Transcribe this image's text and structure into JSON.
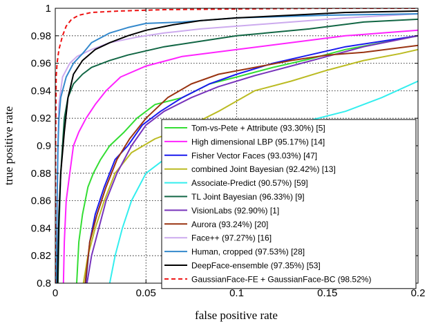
{
  "chart_data": {
    "type": "line",
    "title": "",
    "xlabel": "false positive rate",
    "ylabel": "true positive rate",
    "xlim": [
      0,
      0.2
    ],
    "ylim": [
      0.8,
      1.0
    ],
    "x_ticks": [
      "0",
      "0.05",
      "0.1",
      "0.15",
      "0.2"
    ],
    "y_ticks": [
      "0.8",
      "0.82",
      "0.84",
      "0.86",
      "0.88",
      "0.9",
      "0.92",
      "0.94",
      "0.96",
      "0.98",
      "1"
    ],
    "grid": true,
    "legend_position": "bottom-right",
    "series": [
      {
        "name": "Tom-vs-Pete + Attribute (93.30%) [5]",
        "color": "#33dd33",
        "dash": false,
        "points": [
          [
            0.0118,
            0.8
          ],
          [
            0.013,
            0.83
          ],
          [
            0.015,
            0.85
          ],
          [
            0.018,
            0.87
          ],
          [
            0.021,
            0.88
          ],
          [
            0.025,
            0.89
          ],
          [
            0.03,
            0.9
          ],
          [
            0.038,
            0.91
          ],
          [
            0.045,
            0.92
          ],
          [
            0.055,
            0.93
          ],
          [
            0.07,
            0.935
          ],
          [
            0.085,
            0.945
          ],
          [
            0.1,
            0.95
          ],
          [
            0.12,
            0.957
          ],
          [
            0.14,
            0.963
          ],
          [
            0.16,
            0.97
          ],
          [
            0.18,
            0.975
          ],
          [
            0.2,
            0.98
          ]
        ]
      },
      {
        "name": "High dimensional LBP (95.17%) [14]",
        "color": "#ff22ff",
        "dash": false,
        "points": [
          [
            0.0045,
            0.8
          ],
          [
            0.005,
            0.83
          ],
          [
            0.006,
            0.86
          ],
          [
            0.008,
            0.88
          ],
          [
            0.01,
            0.9
          ],
          [
            0.013,
            0.91
          ],
          [
            0.017,
            0.92
          ],
          [
            0.022,
            0.93
          ],
          [
            0.028,
            0.94
          ],
          [
            0.036,
            0.95
          ],
          [
            0.05,
            0.958
          ],
          [
            0.07,
            0.965
          ],
          [
            0.1,
            0.97
          ],
          [
            0.13,
            0.975
          ],
          [
            0.16,
            0.98
          ],
          [
            0.2,
            0.984
          ]
        ]
      },
      {
        "name": "Fisher Vector Faces (93.03%) [47]",
        "color": "#1a1aee",
        "dash": false,
        "points": [
          [
            0.0168,
            0.8
          ],
          [
            0.019,
            0.83
          ],
          [
            0.022,
            0.85
          ],
          [
            0.027,
            0.87
          ],
          [
            0.033,
            0.89
          ],
          [
            0.04,
            0.9
          ],
          [
            0.048,
            0.915
          ],
          [
            0.058,
            0.925
          ],
          [
            0.07,
            0.935
          ],
          [
            0.085,
            0.945
          ],
          [
            0.1,
            0.952
          ],
          [
            0.12,
            0.96
          ],
          [
            0.14,
            0.966
          ],
          [
            0.16,
            0.972
          ],
          [
            0.18,
            0.976
          ],
          [
            0.2,
            0.98
          ]
        ]
      },
      {
        "name": "combined Joint Bayesian (92.42%) [13]",
        "color": "#bbbb22",
        "dash": false,
        "points": [
          [
            0.0155,
            0.8
          ],
          [
            0.018,
            0.82
          ],
          [
            0.022,
            0.84
          ],
          [
            0.027,
            0.86
          ],
          [
            0.033,
            0.88
          ],
          [
            0.042,
            0.895
          ],
          [
            0.055,
            0.905
          ],
          [
            0.075,
            0.915
          ],
          [
            0.09,
            0.925
          ],
          [
            0.11,
            0.94
          ],
          [
            0.13,
            0.947
          ],
          [
            0.15,
            0.955
          ],
          [
            0.17,
            0.962
          ],
          [
            0.19,
            0.967
          ],
          [
            0.2,
            0.97
          ]
        ]
      },
      {
        "name": "Associate-Predict (90.57%) [59]",
        "color": "#33eeee",
        "dash": false,
        "points": [
          [
            0.03,
            0.8
          ],
          [
            0.033,
            0.82
          ],
          [
            0.037,
            0.84
          ],
          [
            0.042,
            0.86
          ],
          [
            0.05,
            0.88
          ],
          [
            0.06,
            0.89
          ],
          [
            0.08,
            0.9
          ],
          [
            0.1,
            0.91
          ],
          [
            0.13,
            0.915
          ],
          [
            0.16,
            0.925
          ],
          [
            0.18,
            0.935
          ],
          [
            0.2,
            0.947
          ]
        ]
      },
      {
        "name": "TL Joint Bayesian (96.33%) [9]",
        "color": "#116644",
        "dash": false,
        "points": [
          [
            0.0015,
            0.8
          ],
          [
            0.002,
            0.84
          ],
          [
            0.003,
            0.88
          ],
          [
            0.004,
            0.9
          ],
          [
            0.005,
            0.92
          ],
          [
            0.007,
            0.935
          ],
          [
            0.01,
            0.945
          ],
          [
            0.015,
            0.952
          ],
          [
            0.02,
            0.957
          ],
          [
            0.03,
            0.962
          ],
          [
            0.04,
            0.966
          ],
          [
            0.06,
            0.972
          ],
          [
            0.08,
            0.976
          ],
          [
            0.1,
            0.98
          ],
          [
            0.14,
            0.985
          ],
          [
            0.17,
            0.99
          ],
          [
            0.2,
            0.992
          ]
        ]
      },
      {
        "name": "VisionLabs (92.90%) [1]",
        "color": "#7733bb",
        "dash": false,
        "points": [
          [
            0.0175,
            0.8
          ],
          [
            0.02,
            0.82
          ],
          [
            0.024,
            0.84
          ],
          [
            0.028,
            0.86
          ],
          [
            0.034,
            0.88
          ],
          [
            0.042,
            0.9
          ],
          [
            0.05,
            0.915
          ],
          [
            0.06,
            0.925
          ],
          [
            0.075,
            0.935
          ],
          [
            0.09,
            0.943
          ],
          [
            0.11,
            0.951
          ],
          [
            0.13,
            0.958
          ],
          [
            0.15,
            0.965
          ],
          [
            0.17,
            0.972
          ],
          [
            0.2,
            0.98
          ]
        ]
      },
      {
        "name": "Aurora (93.24%) [20]",
        "color": "#993311",
        "dash": false,
        "points": [
          [
            0.0165,
            0.8
          ],
          [
            0.019,
            0.83
          ],
          [
            0.023,
            0.85
          ],
          [
            0.028,
            0.87
          ],
          [
            0.034,
            0.89
          ],
          [
            0.041,
            0.905
          ],
          [
            0.05,
            0.92
          ],
          [
            0.062,
            0.935
          ],
          [
            0.075,
            0.945
          ],
          [
            0.09,
            0.952
          ],
          [
            0.11,
            0.957
          ],
          [
            0.13,
            0.962
          ],
          [
            0.15,
            0.966
          ],
          [
            0.17,
            0.968
          ],
          [
            0.2,
            0.973
          ]
        ]
      },
      {
        "name": "Face++ (97.27%) [16]",
        "color": "#ccaaee",
        "dash": false,
        "points": [
          [
            0.0008,
            0.8
          ],
          [
            0.001,
            0.85
          ],
          [
            0.0015,
            0.9
          ],
          [
            0.002,
            0.93
          ],
          [
            0.004,
            0.95
          ],
          [
            0.008,
            0.96
          ],
          [
            0.012,
            0.965
          ],
          [
            0.02,
            0.97
          ],
          [
            0.03,
            0.975
          ],
          [
            0.045,
            0.979
          ],
          [
            0.06,
            0.982
          ],
          [
            0.08,
            0.985
          ],
          [
            0.1,
            0.987
          ],
          [
            0.13,
            0.99
          ],
          [
            0.16,
            0.993
          ],
          [
            0.2,
            0.996
          ]
        ]
      },
      {
        "name": "Human, cropped (97.53%) [28]",
        "color": "#3388cc",
        "dash": false,
        "points": [
          [
            0.0006,
            0.8
          ],
          [
            0.001,
            0.86
          ],
          [
            0.0015,
            0.9
          ],
          [
            0.002,
            0.92
          ],
          [
            0.003,
            0.935
          ],
          [
            0.006,
            0.95
          ],
          [
            0.01,
            0.96
          ],
          [
            0.015,
            0.967
          ],
          [
            0.02,
            0.975
          ],
          [
            0.03,
            0.982
          ],
          [
            0.04,
            0.986
          ],
          [
            0.05,
            0.989
          ],
          [
            0.07,
            0.99
          ],
          [
            0.1,
            0.993
          ],
          [
            0.15,
            0.995
          ],
          [
            0.2,
            0.996
          ]
        ]
      },
      {
        "name": "DeepFace-ensemble (97.35%) [53]",
        "color": "#000000",
        "dash": false,
        "points": [
          [
            0.0012,
            0.8
          ],
          [
            0.002,
            0.85
          ],
          [
            0.003,
            0.88
          ],
          [
            0.005,
            0.91
          ],
          [
            0.007,
            0.935
          ],
          [
            0.01,
            0.952
          ],
          [
            0.015,
            0.962
          ],
          [
            0.022,
            0.97
          ],
          [
            0.03,
            0.975
          ],
          [
            0.04,
            0.98
          ],
          [
            0.05,
            0.984
          ],
          [
            0.065,
            0.988
          ],
          [
            0.08,
            0.991
          ],
          [
            0.1,
            0.993
          ],
          [
            0.13,
            0.995
          ],
          [
            0.16,
            0.997
          ],
          [
            0.2,
            0.998
          ]
        ]
      },
      {
        "name": "GaussianFace-FE + GaussianFace-BC (98.52%)",
        "color": "#ee1111",
        "dash": true,
        "points": [
          [
            0.0,
            0.8
          ],
          [
            0.0002,
            0.9
          ],
          [
            0.0005,
            0.95
          ],
          [
            0.001,
            0.96
          ],
          [
            0.002,
            0.97
          ],
          [
            0.004,
            0.98
          ],
          [
            0.006,
            0.987
          ],
          [
            0.009,
            0.992
          ],
          [
            0.013,
            0.995
          ],
          [
            0.02,
            0.997
          ],
          [
            0.035,
            0.998
          ],
          [
            0.06,
            0.999
          ],
          [
            0.1,
            0.9995
          ],
          [
            0.15,
            1.0
          ],
          [
            0.2,
            1.0
          ]
        ]
      }
    ]
  }
}
